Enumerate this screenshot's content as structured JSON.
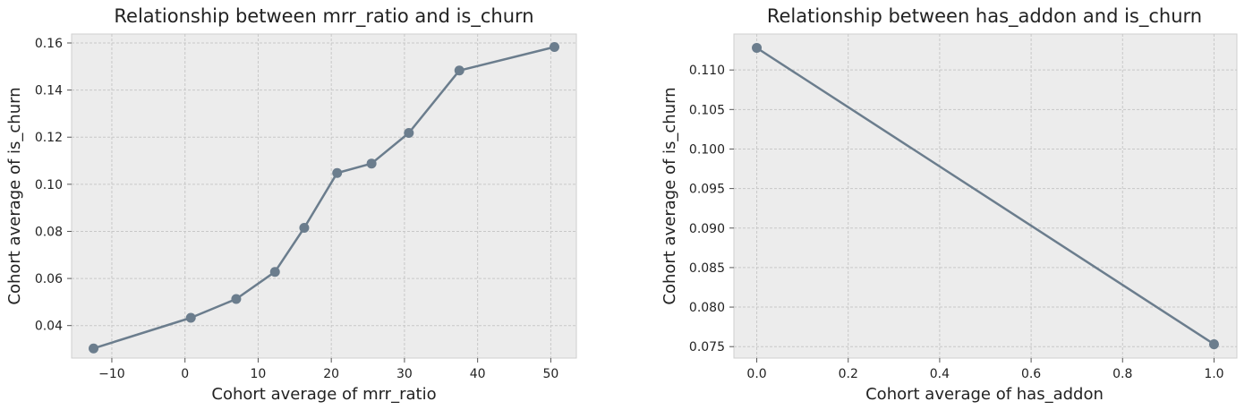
{
  "colors": {
    "plot_bg": "#ececec",
    "grid": "#c8c8c8",
    "line": "#6b7d8d",
    "frame": "#cfcfcf"
  },
  "chart_data": [
    {
      "type": "line",
      "title": "Relationship between mrr_ratio and is_churn",
      "xlabel": "Cohort average of mrr_ratio",
      "ylabel": "Cohort average of is_churn",
      "xlim": [
        -15.5,
        53.5
      ],
      "ylim": [
        0.0262,
        0.1638
      ],
      "xticks": [
        -10,
        0,
        10,
        20,
        30,
        40,
        50
      ],
      "xtick_labels": [
        "−10",
        "0",
        "10",
        "20",
        "30",
        "40",
        "50"
      ],
      "yticks": [
        0.04,
        0.06,
        0.08,
        0.1,
        0.12,
        0.14,
        0.16
      ],
      "ytick_labels": [
        "0.04",
        "0.06",
        "0.08",
        "0.10",
        "0.12",
        "0.14",
        "0.16"
      ],
      "grid": true,
      "marker": "circle",
      "series": [
        {
          "x": [
            -12.5,
            0.8,
            7.0,
            12.3,
            16.3,
            20.8,
            25.5,
            30.6,
            37.5,
            50.5
          ],
          "y": [
            0.0303,
            0.0433,
            0.0513,
            0.0628,
            0.0815,
            0.1048,
            0.1088,
            0.1218,
            0.1483,
            0.1583
          ]
        }
      ]
    },
    {
      "type": "line",
      "title": "Relationship between has_addon and is_churn",
      "xlabel": "Cohort average of has_addon",
      "ylabel": "Cohort average of is_churn",
      "xlim": [
        -0.05,
        1.05
      ],
      "ylim": [
        0.07355,
        0.11455
      ],
      "xticks": [
        0.0,
        0.2,
        0.4,
        0.6,
        0.8,
        1.0
      ],
      "xtick_labels": [
        "0.0",
        "0.2",
        "0.4",
        "0.6",
        "0.8",
        "1.0"
      ],
      "yticks": [
        0.075,
        0.08,
        0.085,
        0.09,
        0.095,
        0.1,
        0.105,
        0.11
      ],
      "ytick_labels": [
        "0.075",
        "0.080",
        "0.085",
        "0.090",
        "0.095",
        "0.100",
        "0.105",
        "0.110"
      ],
      "grid": true,
      "marker": "circle",
      "series": [
        {
          "x": [
            0.0,
            1.0
          ],
          "y": [
            0.1128,
            0.0753
          ]
        }
      ]
    }
  ]
}
